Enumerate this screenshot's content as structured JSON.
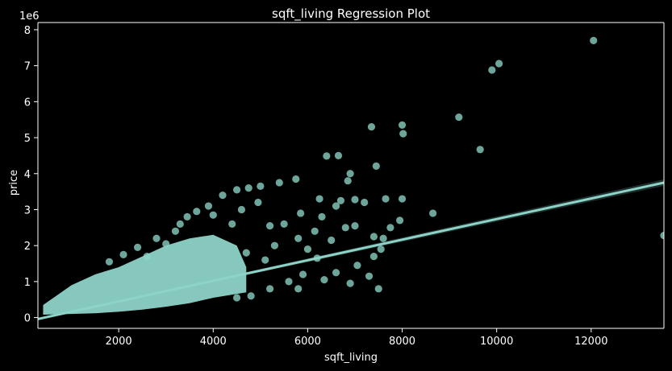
{
  "chart_data": {
    "type": "scatter",
    "title": "sqft_living Regression Plot",
    "xlabel": "sqft_living",
    "ylabel": "price",
    "y_multiplier_label": "1e6",
    "xlim": [
      290,
      13540
    ],
    "ylim": [
      -0.3,
      8.2
    ],
    "x_ticks": [
      2000,
      4000,
      6000,
      8000,
      10000,
      12000
    ],
    "x_tick_labels": [
      "2000",
      "4000",
      "6000",
      "8000",
      "10000",
      "12000"
    ],
    "y_ticks": [
      0,
      1,
      2,
      3,
      4,
      5,
      6,
      7,
      8
    ],
    "y_tick_labels": [
      "0",
      "1",
      "2",
      "3",
      "4",
      "5",
      "6",
      "7",
      "8"
    ],
    "grid": false,
    "colors": {
      "background": "#000000",
      "points": "#8dd3c7",
      "axes": "#ffffff"
    },
    "regression_line": {
      "x": [
        290,
        13540
      ],
      "y": [
        -0.04,
        3.75
      ]
    },
    "series": [
      {
        "points": [
          [
            12050,
            7.7
          ],
          [
            10050,
            7.06
          ],
          [
            9900,
            6.88
          ],
          [
            9200,
            5.57
          ],
          [
            9650,
            4.67
          ],
          [
            8000,
            5.35
          ],
          [
            8020,
            5.11
          ],
          [
            7350,
            5.3
          ],
          [
            6400,
            4.49
          ],
          [
            6650,
            4.5
          ],
          [
            7450,
            4.21
          ],
          [
            6900,
            4.0
          ],
          [
            6850,
            3.8
          ],
          [
            5750,
            3.85
          ],
          [
            5400,
            3.75
          ],
          [
            5000,
            3.65
          ],
          [
            4500,
            3.55
          ],
          [
            4750,
            3.6
          ],
          [
            6250,
            3.3
          ],
          [
            7000,
            3.28
          ],
          [
            7650,
            3.3
          ],
          [
            8000,
            3.3
          ],
          [
            7200,
            3.2
          ],
          [
            6600,
            3.1
          ],
          [
            7950,
            2.7
          ],
          [
            8650,
            2.9
          ],
          [
            7750,
            2.5
          ],
          [
            7600,
            2.2
          ],
          [
            7550,
            1.9
          ],
          [
            7400,
            1.7
          ],
          [
            7050,
            1.45
          ],
          [
            7300,
            1.15
          ],
          [
            6900,
            0.95
          ],
          [
            7500,
            0.8
          ],
          [
            7000,
            2.55
          ],
          [
            6800,
            2.5
          ],
          [
            7400,
            2.25
          ],
          [
            6300,
            2.8
          ],
          [
            5850,
            2.9
          ],
          [
            6700,
            3.25
          ],
          [
            6150,
            2.4
          ],
          [
            6500,
            2.15
          ],
          [
            5200,
            2.55
          ],
          [
            5500,
            2.6
          ],
          [
            5800,
            2.2
          ],
          [
            6000,
            1.9
          ],
          [
            6200,
            1.65
          ],
          [
            6600,
            1.25
          ],
          [
            6350,
            1.05
          ],
          [
            5800,
            0.8
          ],
          [
            13540,
            2.28
          ],
          [
            4200,
            3.4
          ],
          [
            3900,
            3.1
          ],
          [
            3650,
            2.95
          ],
          [
            3450,
            2.8
          ],
          [
            4950,
            3.2
          ],
          [
            4600,
            3.0
          ],
          [
            5300,
            2.0
          ],
          [
            5100,
            1.6
          ],
          [
            4700,
            1.8
          ],
          [
            2400,
            1.95
          ],
          [
            2800,
            2.2
          ],
          [
            3200,
            2.4
          ],
          [
            2600,
            1.7
          ],
          [
            3000,
            2.05
          ],
          [
            5900,
            1.2
          ],
          [
            5600,
            1.0
          ],
          [
            4800,
            0.6
          ],
          [
            5200,
            0.8
          ],
          [
            4500,
            0.55
          ],
          [
            1800,
            1.55
          ],
          [
            2100,
            1.75
          ],
          [
            3300,
            2.6
          ],
          [
            4000,
            2.85
          ],
          [
            4400,
            2.6
          ]
        ]
      }
    ],
    "dense_band": {
      "upper": [
        [
          400,
          0.35
        ],
        [
          1000,
          0.9
        ],
        [
          1500,
          1.2
        ],
        [
          2000,
          1.4
        ],
        [
          2500,
          1.7
        ],
        [
          3000,
          2.0
        ],
        [
          3500,
          2.2
        ],
        [
          4000,
          2.3
        ],
        [
          4500,
          2.0
        ],
        [
          4700,
          1.4
        ]
      ],
      "lower": [
        [
          4700,
          0.7
        ],
        [
          4000,
          0.55
        ],
        [
          3500,
          0.4
        ],
        [
          3000,
          0.3
        ],
        [
          2500,
          0.22
        ],
        [
          2000,
          0.16
        ],
        [
          1500,
          0.12
        ],
        [
          1000,
          0.1
        ],
        [
          400,
          0.08
        ]
      ]
    }
  }
}
